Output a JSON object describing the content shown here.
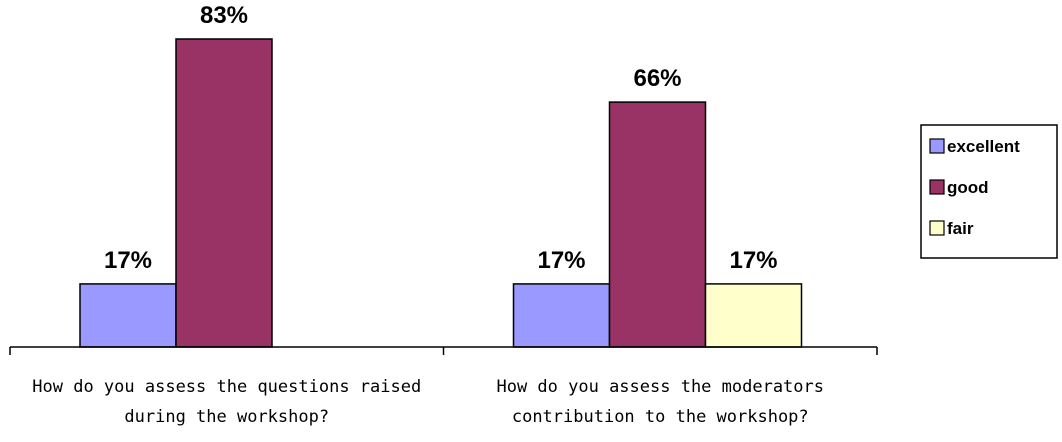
{
  "chart_data": {
    "type": "bar",
    "categories": [
      [
        "How do you assess the questions raised",
        "during the workshop?"
      ],
      [
        "How do you assess the moderators",
        "contribution to the workshop?"
      ]
    ],
    "series": [
      {
        "name": "excellent",
        "color": "#9999ff",
        "values": [
          17,
          17
        ],
        "labels": [
          "17%",
          "17%"
        ]
      },
      {
        "name": "good",
        "color": "#993366",
        "values": [
          83,
          66
        ],
        "labels": [
          "83%",
          "66%"
        ]
      },
      {
        "name": "fair",
        "color": "#ffffcc",
        "values": [
          null,
          17
        ],
        "labels": [
          null,
          "17%"
        ]
      }
    ],
    "ylim": [
      0,
      83
    ],
    "grid": false,
    "legend_position": "right"
  }
}
